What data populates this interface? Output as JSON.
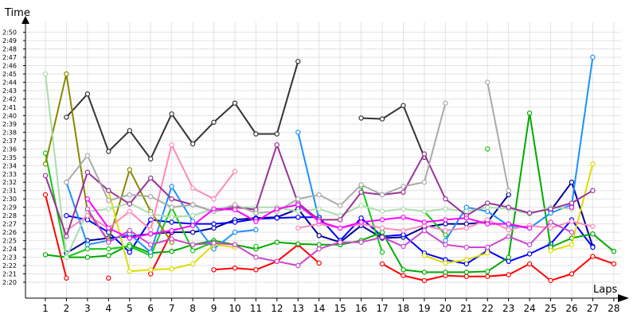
{
  "chart_data": {
    "type": "line",
    "xlabel": "Laps",
    "ylabel": "Time",
    "x": [
      1,
      2,
      3,
      4,
      5,
      6,
      7,
      8,
      9,
      10,
      11,
      12,
      13,
      14,
      15,
      16,
      17,
      18,
      19,
      20,
      21,
      22,
      23,
      24,
      25,
      26,
      27,
      28
    ],
    "xlim": [
      1,
      28
    ],
    "ylim_seconds": [
      138,
      172
    ],
    "y_ticks": [
      "2:20",
      "2:21",
      "2:22",
      "2:23",
      "2:24",
      "2:25",
      "2:26",
      "2:27",
      "2:28",
      "2:29",
      "2:30",
      "2:31",
      "2:32",
      "2:33",
      "2:34",
      "2:35",
      "2:36",
      "2:37",
      "2:38",
      "2:39",
      "2:40",
      "2:41",
      "2:42",
      "2:43",
      "2:44",
      "2:45",
      "2:46",
      "2:47",
      "2:48",
      "2:49",
      "2:50"
    ],
    "grid": true,
    "series": [
      {
        "color": "#ff0000",
        "values": [
          150.5,
          140.5,
          null,
          140.5,
          null,
          141,
          146,
          null,
          141.5,
          141.7,
          141.5,
          142.5,
          144.5,
          142.3,
          null,
          null,
          142.2,
          140.8,
          140.2,
          140.8,
          140.7,
          140.7,
          140.9,
          142.2,
          140.2,
          141,
          143.1,
          142.2
        ]
      },
      {
        "color": "#000099",
        "values": [
          null,
          143.5,
          145,
          145.3,
          145.5,
          145.8,
          146,
          146,
          146.5,
          147.5,
          147.7,
          147.8,
          148.8,
          145.6,
          144.8,
          146.8,
          145.3,
          145.4,
          146.6,
          147,
          147,
          147.2,
          150.5,
          null,
          148.6,
          152,
          144.3,
          null
        ]
      },
      {
        "color": "#0000ff",
        "values": [
          null,
          148,
          147.5,
          146,
          143.6,
          147.5,
          147.2,
          147,
          147,
          147.2,
          147.6,
          147.7,
          147.8,
          147.8,
          145,
          147.7,
          145.5,
          145.7,
          143.5,
          142.7,
          142.2,
          143.8,
          142.5,
          143.4,
          144.6,
          147.5,
          144.2,
          null
        ]
      },
      {
        "color": "#00aa00",
        "values": [
          143.3,
          143,
          143,
          143.2,
          144.5,
          143.5,
          143.7,
          144.5,
          145,
          144.5,
          144,
          144.8,
          144.6,
          144.5,
          144.5,
          145,
          146,
          141.5,
          141.2,
          141.2,
          141.2,
          141.3,
          143,
          160.3,
          144.2,
          145.3,
          145.8,
          143.7
        ]
      },
      {
        "color": "#11cc11",
        "values": [
          155.5,
          143,
          144,
          144,
          144.3,
          143.2,
          149,
          143.8,
          144.8,
          null,
          144.3,
          null,
          null,
          null,
          null,
          151.5,
          143.6,
          null,
          148.5,
          145.7,
          null,
          156,
          null,
          null,
          null,
          null,
          null,
          null
        ]
      },
      {
        "color": "#1e90ff",
        "values": [
          null,
          152,
          144.5,
          145,
          145.8,
          143.6,
          151.5,
          147.3,
          144,
          146,
          146.3,
          null,
          158,
          147.5,
          null,
          null,
          146.5,
          null,
          null,
          145,
          149,
          148.5,
          146.8,
          146.5,
          148.3,
          149.3,
          167,
          null
        ]
      },
      {
        "color": "#333333",
        "values": [
          null,
          159.8,
          162.6,
          155.7,
          158.2,
          154.8,
          160.2,
          156.6,
          159.2,
          161.5,
          157.8,
          157.8,
          166.5,
          null,
          null,
          159.7,
          159.6,
          161.2,
          155,
          null,
          null,
          null,
          null,
          null,
          null,
          null,
          null,
          null
        ]
      },
      {
        "color": "#888800",
        "values": [
          154.2,
          165,
          148.5,
          145,
          153.5,
          148.5,
          144.8,
          null,
          null,
          null,
          null,
          null,
          null,
          null,
          null,
          null,
          null,
          null,
          null,
          null,
          null,
          null,
          null,
          null,
          null,
          null,
          null,
          null
        ]
      },
      {
        "color": "#dddd00",
        "values": [
          null,
          null,
          null,
          151,
          141.3,
          141.5,
          141.6,
          142.2,
          144.5,
          144.2,
          null,
          null,
          null,
          null,
          null,
          null,
          null,
          null,
          143.2,
          142.3,
          142.7,
          143.5,
          null,
          null,
          143.8,
          144.5,
          154.2,
          null
        ]
      },
      {
        "color": "#aaddaa",
        "values": [
          165,
          143,
          148.5,
          148.8,
          149.5,
          148.2,
          147.8,
          148,
          148.8,
          149,
          149,
          149,
          148.5,
          148.8,
          148,
          149.2,
          148.5,
          148.8,
          148.5,
          148.8,
          148.5,
          149,
          148.8,
          148.2,
          149,
          148.8,
          null,
          null
        ]
      },
      {
        "color": "#ff88bb",
        "values": [
          null,
          146.2,
          148,
          146.5,
          148.5,
          146.3,
          156.5,
          151.3,
          150,
          153.3,
          null,
          null,
          146.5,
          147,
          146.5,
          147,
          146.5,
          146.2,
          146.8,
          146.2,
          146.5,
          147.5,
          146.3,
          146.8,
          146.5,
          147.3,
          146.7,
          null
        ]
      },
      {
        "color": "#993399",
        "values": [
          152.8,
          145.5,
          153.2,
          151,
          149.4,
          152.5,
          150,
          149.3,
          148.5,
          149,
          148.7,
          156.5,
          149.5,
          147.5,
          147.5,
          150.8,
          150.5,
          150.8,
          155.4,
          150,
          148,
          149.5,
          149,
          148.3,
          148.8,
          149.5,
          151,
          null
        ]
      },
      {
        "color": "#aaaaaa",
        "values": [
          null,
          152,
          155.2,
          149.8,
          150.5,
          150.3,
          149,
          149.3,
          148.5,
          149.3,
          148.3,
          148.5,
          150,
          150.5,
          149.2,
          151.7,
          150.5,
          151.5,
          152,
          161.5,
          null,
          164,
          151,
          null,
          null,
          null,
          null,
          null
        ]
      },
      {
        "color": "#ff00ff",
        "values": [
          null,
          null,
          150,
          146.5,
          145.3,
          145.8,
          146.2,
          146.8,
          148.8,
          148.7,
          147.3,
          148.8,
          149.3,
          147.3,
          146.5,
          147.2,
          147.5,
          147.8,
          147.2,
          147.5,
          147.7,
          147,
          147,
          146.5,
          null,
          149,
          null,
          null
        ]
      },
      {
        "color": "#cc44cc",
        "values": [
          null,
          null,
          148.8,
          144.8,
          146.2,
          144.5,
          145.2,
          144.5,
          144.7,
          144.5,
          143,
          142.5,
          142,
          144,
          144.8,
          144.8,
          145.4,
          144.3,
          146.2,
          144.5,
          144.2,
          144.2,
          145.5,
          144.5,
          147.2,
          146,
          null,
          null
        ]
      }
    ]
  }
}
